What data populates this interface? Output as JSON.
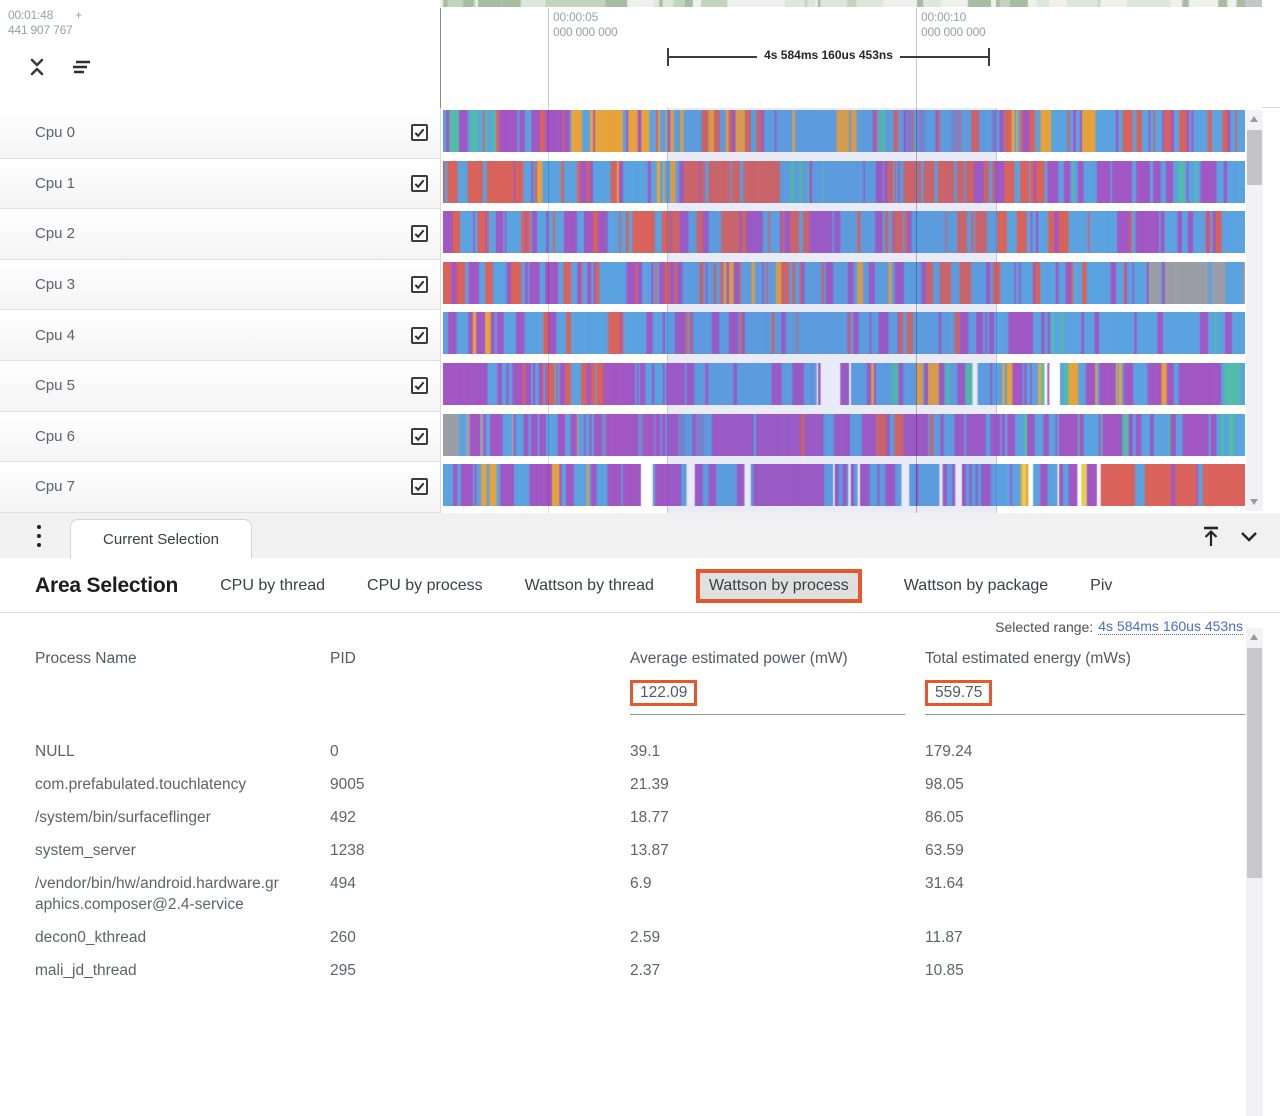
{
  "timeline": {
    "offset_time": "00:01:48",
    "offset_plus": "+",
    "offset_ns": "441 907 767",
    "markers": [
      {
        "time": "00:00:05",
        "sub": "000 000 000"
      },
      {
        "time": "00:00:10",
        "sub": "000 000 000"
      }
    ],
    "measurement_label": "4s 584ms 160us 453ns"
  },
  "icons": {
    "collapse": "collapse-tracks chevrons",
    "track_options": "three-lines menu",
    "kebab": "vertical three dots",
    "dock_top": "arrow-up-to-line",
    "chevron_down": "v chevron",
    "scroll_up": "triangle up",
    "scroll_down": "triangle down"
  },
  "minimap": {
    "base": "#eef1ec",
    "patch_colors": [
      "#dde7da",
      "#c2d4bd",
      "#a6bda1"
    ],
    "gray_block": "#c4c6ca"
  },
  "tracks": {
    "palette": {
      "blue": "#5AA2E0",
      "lightblue": "#7FC3EE",
      "purple": "#A157C4",
      "red": "#D9625A",
      "orange": "#E7A33B",
      "yellow": "#E6CE55",
      "teal": "#52BCA8",
      "green": "#7CBF7C",
      "gray": "#9B9EA6",
      "slate": "#7B85CC",
      "white": "#FFFFFF"
    },
    "rows": [
      {
        "label": "Cpu 0",
        "checked": true,
        "segments": [
          [
            0,
            0.07,
            {
              "blue": 4,
              "teal": 2,
              "purple": 2,
              "red": 1,
              "orange": 1
            }
          ],
          [
            0.07,
            0.16,
            {
              "purple": 6,
              "blue": 3,
              "red": 1
            }
          ],
          [
            0.16,
            0.3,
            {
              "orange": 5,
              "blue": 3,
              "purple": 1,
              "red": 1
            }
          ],
          [
            0.3,
            0.58,
            {
              "blue": 7,
              "purple": 1,
              "teal": 1,
              "orange": 1,
              "red": 1
            }
          ],
          [
            0.58,
            0.7,
            {
              "blue": 6,
              "slate": 2,
              "purple": 1,
              "red": 1
            }
          ],
          [
            0.7,
            0.88,
            {
              "blue": 5,
              "orange": 2,
              "purple": 2,
              "red": 1
            }
          ],
          [
            0.88,
            1,
            {
              "red": 4,
              "blue": 4,
              "purple": 2
            }
          ]
        ]
      },
      {
        "label": "Cpu 1",
        "checked": true,
        "segments": [
          [
            0,
            0.1,
            {
              "red": 8,
              "purple": 1,
              "blue": 1
            }
          ],
          [
            0.1,
            0.3,
            {
              "blue": 6,
              "purple": 2,
              "red": 1,
              "orange": 1
            }
          ],
          [
            0.3,
            0.42,
            {
              "red": 7,
              "blue": 2,
              "purple": 1
            }
          ],
          [
            0.42,
            0.55,
            {
              "blue": 8,
              "purple": 1,
              "teal": 1
            }
          ],
          [
            0.55,
            0.75,
            {
              "red": 6,
              "blue": 3,
              "purple": 1
            }
          ],
          [
            0.75,
            1,
            {
              "purple": 5,
              "blue": 4,
              "teal": 1
            }
          ]
        ]
      },
      {
        "label": "Cpu 2",
        "checked": true,
        "segments": [
          [
            0,
            0.22,
            {
              "blue": 5,
              "purple": 3,
              "red": 2
            }
          ],
          [
            0.22,
            0.45,
            {
              "red": 5,
              "blue": 3,
              "purple": 2
            }
          ],
          [
            0.45,
            0.62,
            {
              "blue": 6,
              "purple": 2,
              "red": 2
            }
          ],
          [
            0.62,
            0.78,
            {
              "red": 5,
              "blue": 3,
              "purple": 2
            }
          ],
          [
            0.78,
            1,
            {
              "blue": 6,
              "purple": 3,
              "red": 1
            }
          ]
        ]
      },
      {
        "label": "Cpu 3",
        "checked": true,
        "segments": [
          [
            0,
            0.35,
            {
              "blue": 5,
              "purple": 3,
              "red": 2
            }
          ],
          [
            0.35,
            0.6,
            {
              "blue": 6,
              "purple": 2,
              "red": 1,
              "orange": 1
            }
          ],
          [
            0.6,
            0.88,
            {
              "blue": 6,
              "purple": 3,
              "red": 1
            }
          ],
          [
            0.88,
            1,
            {
              "gray": 7,
              "blue": 2,
              "purple": 1
            }
          ]
        ]
      },
      {
        "label": "Cpu 4",
        "checked": true,
        "segments": [
          [
            0,
            0.12,
            {
              "blue": 5,
              "purple": 3,
              "orange": 2
            }
          ],
          [
            0.12,
            0.5,
            {
              "blue": 7,
              "purple": 2,
              "red": 1
            }
          ],
          [
            0.5,
            0.75,
            {
              "blue": 6,
              "purple": 3,
              "red": 1
            }
          ],
          [
            0.75,
            1,
            {
              "blue": 7,
              "purple": 2,
              "teal": 1
            }
          ]
        ]
      },
      {
        "label": "Cpu 5",
        "checked": true,
        "segments": [
          [
            0,
            0.13,
            {
              "purple": 5,
              "blue": 4,
              "red": 1
            }
          ],
          [
            0.13,
            0.2,
            {
              "red": 6,
              "purple": 2,
              "blue": 2
            }
          ],
          [
            0.2,
            0.32,
            {
              "purple": 7,
              "blue": 3
            }
          ],
          [
            0.32,
            0.46,
            {
              "blue": 7,
              "purple": 3
            }
          ],
          [
            0.46,
            0.53,
            {
              "white": 5,
              "purple": 3,
              "blue": 2
            }
          ],
          [
            0.53,
            0.78,
            {
              "blue": 4,
              "purple": 2,
              "white": 2,
              "orange": 1,
              "teal": 1
            }
          ],
          [
            0.78,
            0.97,
            {
              "purple": 6,
              "blue": 3,
              "orange": 1
            }
          ],
          [
            0.97,
            1,
            {
              "teal": 5,
              "blue": 5
            }
          ]
        ]
      },
      {
        "label": "Cpu 6",
        "checked": true,
        "segments": [
          [
            0,
            0.02,
            {
              "gray": 10
            }
          ],
          [
            0.02,
            0.17,
            {
              "purple": 5,
              "blue": 3,
              "gray": 1,
              "teal": 1
            }
          ],
          [
            0.17,
            0.42,
            {
              "purple": 7,
              "blue": 2,
              "slate": 1
            }
          ],
          [
            0.42,
            0.62,
            {
              "purple": 6,
              "blue": 3,
              "red": 1
            }
          ],
          [
            0.62,
            0.82,
            {
              "blue": 5,
              "purple": 4,
              "teal": 1
            }
          ],
          [
            0.82,
            0.97,
            {
              "purple": 6,
              "blue": 3,
              "teal": 1
            }
          ],
          [
            0.97,
            1,
            {
              "blue": 7,
              "teal": 3
            }
          ]
        ]
      },
      {
        "label": "Cpu 7",
        "checked": true,
        "segments": [
          [
            0,
            0.2,
            {
              "blue": 5,
              "purple": 4,
              "orange": 1
            }
          ],
          [
            0.2,
            0.35,
            {
              "purple": 6,
              "blue": 3,
              "white": 1
            }
          ],
          [
            0.35,
            0.48,
            {
              "purple": 7,
              "blue": 2,
              "white": 1
            }
          ],
          [
            0.48,
            0.72,
            {
              "blue": 6,
              "purple": 3,
              "white": 1
            }
          ],
          [
            0.72,
            0.78,
            {
              "blue": 4,
              "orange": 2,
              "yellow": 2,
              "purple": 1,
              "white": 1
            }
          ],
          [
            0.78,
            0.82,
            {
              "yellow": 3,
              "white": 2,
              "purple": 3,
              "blue": 2
            }
          ],
          [
            0.82,
            1,
            {
              "red": 8,
              "purple": 1,
              "blue": 1
            }
          ]
        ]
      }
    ]
  },
  "panel": {
    "current_tab": "Current Selection",
    "title": "Area Selection",
    "tabs": [
      {
        "label": "CPU by thread",
        "selected": false
      },
      {
        "label": "CPU by process",
        "selected": false
      },
      {
        "label": "Wattson by thread",
        "selected": false
      },
      {
        "label": "Wattson by process",
        "selected": true
      },
      {
        "label": "Wattson by package",
        "selected": false
      },
      {
        "label": "Piv",
        "selected": false
      }
    ],
    "selected_range_label": "Selected range:",
    "selected_range_value": "4s 584ms 160us 453ns",
    "table": {
      "columns": [
        "Process Name",
        "PID",
        "Average estimated power (mW)",
        "Total estimated energy (mWs)"
      ],
      "summary": {
        "avg_power": "122.09",
        "total_energy": "559.75"
      },
      "rows": [
        {
          "name": "NULL",
          "pid": "0",
          "power": "39.1",
          "energy": "179.24"
        },
        {
          "name": "com.prefabulated.touchlatency",
          "pid": "9005",
          "power": "21.39",
          "energy": "98.05"
        },
        {
          "name": "/system/bin/surfaceflinger",
          "pid": "492",
          "power": "18.77",
          "energy": "86.05"
        },
        {
          "name": "system_server",
          "pid": "1238",
          "power": "13.87",
          "energy": "63.59"
        },
        {
          "name": "/vendor/bin/hw/android.hardware.graphics.composer@2.4-service",
          "pid": "494",
          "power": "6.9",
          "energy": "31.64"
        },
        {
          "name": "decon0_kthread",
          "pid": "260",
          "power": "2.59",
          "energy": "11.87"
        },
        {
          "name": "mali_jd_thread",
          "pid": "295",
          "power": "2.37",
          "energy": "10.85"
        }
      ]
    }
  },
  "colors": {
    "accent_orange": "#e8572b",
    "link_blue": "#4a6bd8",
    "text_gray": "#5f6368",
    "ruler_gray": "#9aa0a6",
    "selection_overlay": "rgba(104,114,205,0.14)"
  }
}
